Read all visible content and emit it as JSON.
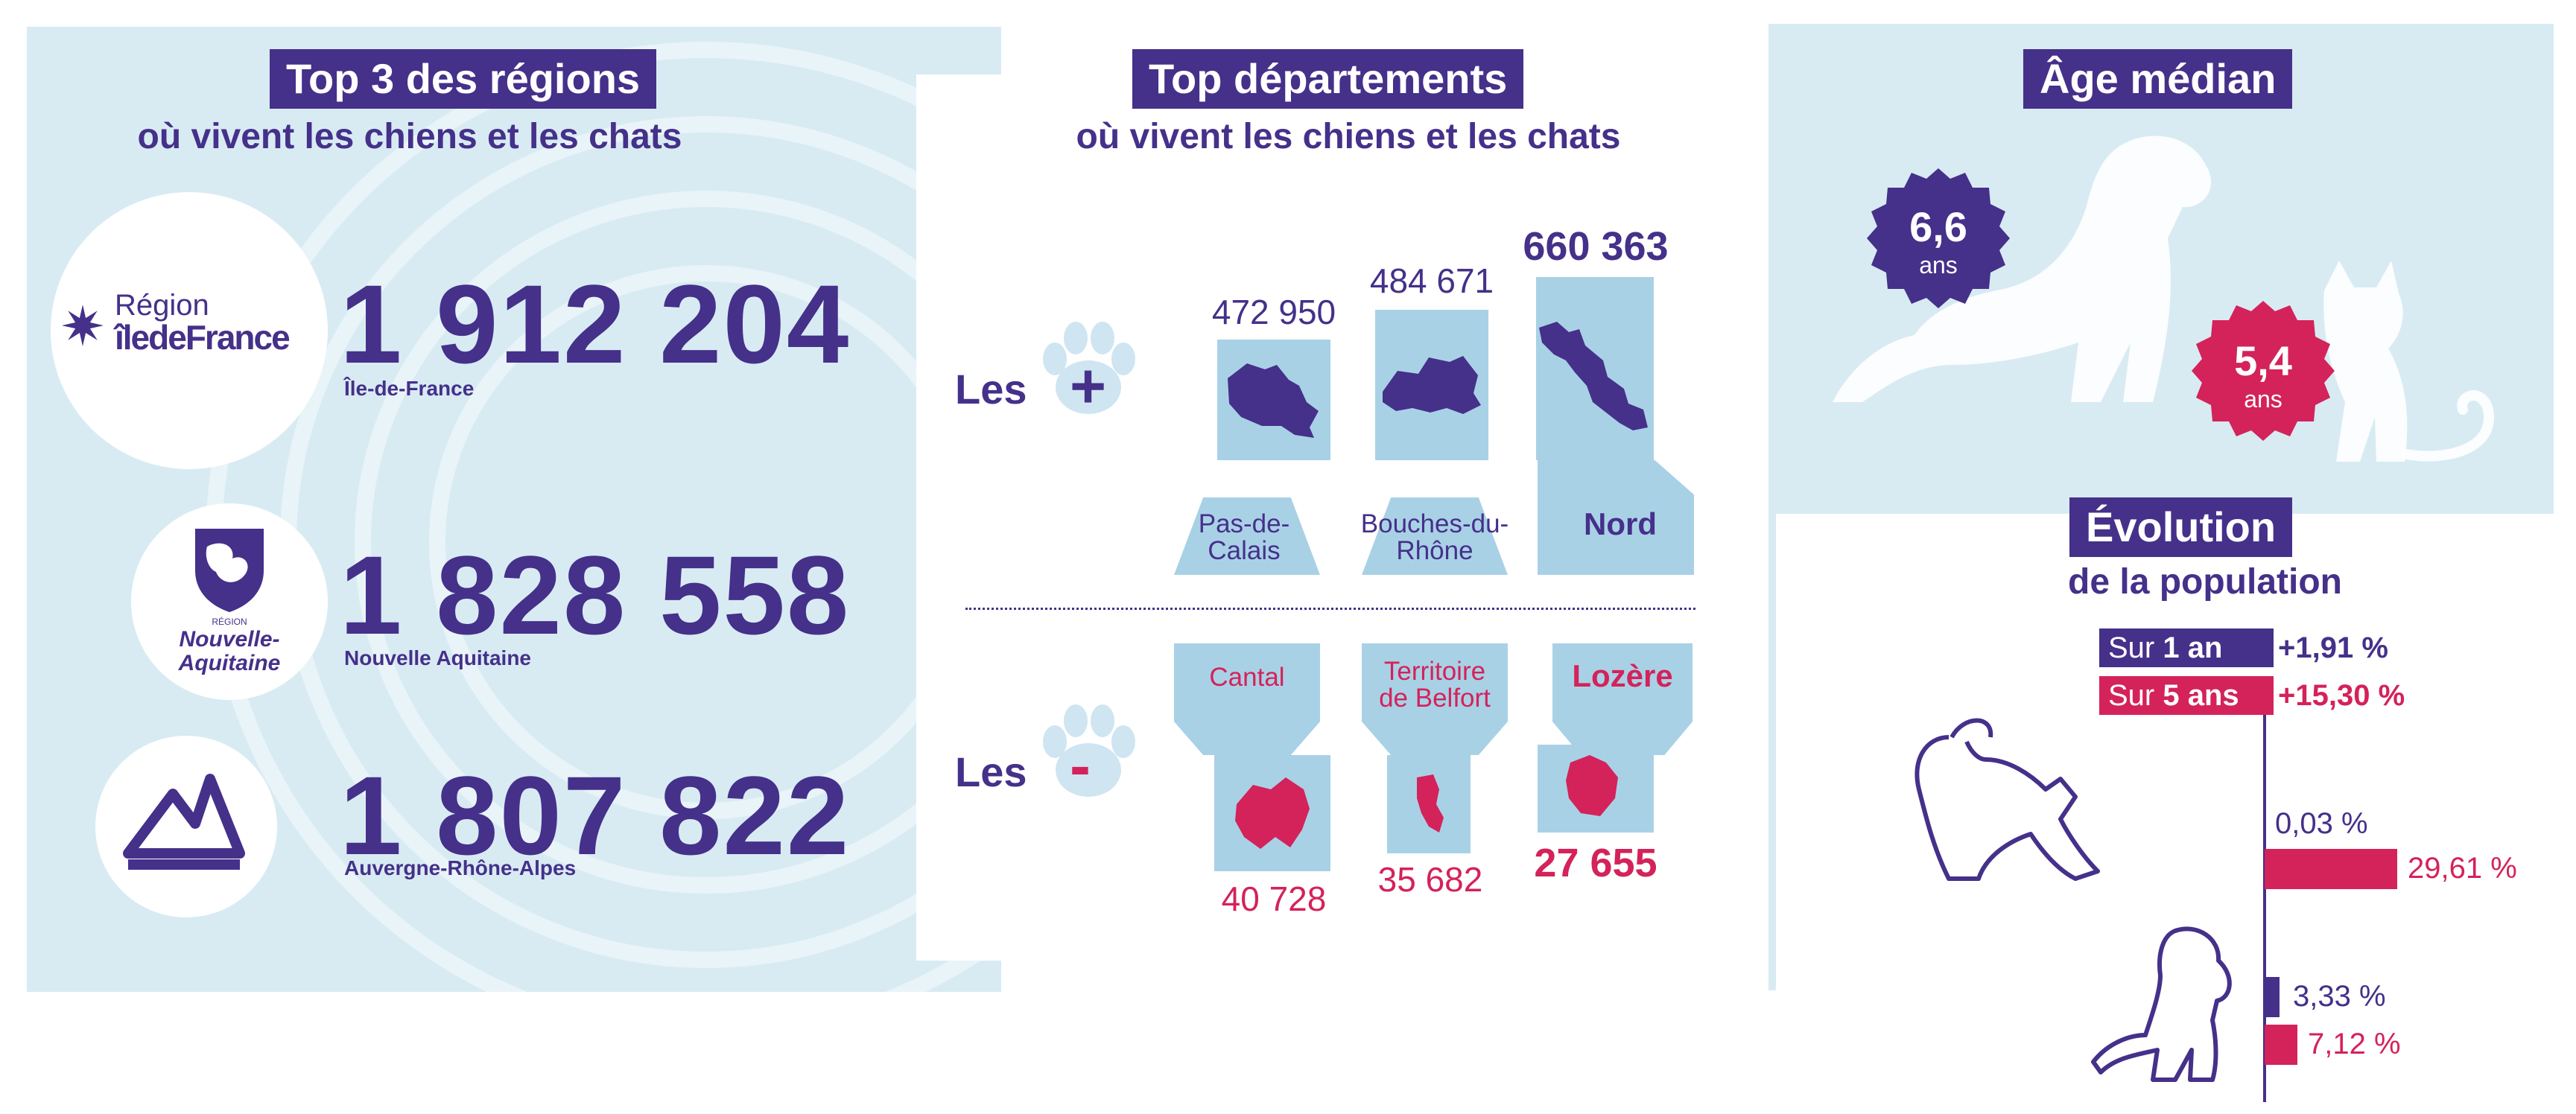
{
  "colors": {
    "purple": "#45308a",
    "pink": "#d4225a",
    "panel": "#d8ebf3",
    "tile": "#a9d1e6"
  },
  "regions": {
    "title": "Top 3 des régions",
    "subtitle": "où vivent les chiens et les chats",
    "items": [
      {
        "value": "1 912 204",
        "name": "Île-de-France",
        "logo_text_1": "Région",
        "logo_text_2": "îledeFrance"
      },
      {
        "value": "1 828 558",
        "name": "Nouvelle Aquitaine",
        "logo_text_1": "RÉGION",
        "logo_text_2": "Nouvelle-",
        "logo_text_3": "Aquitaine"
      },
      {
        "value": "1 807 822",
        "name": "Auvergne-Rhône-Alpes"
      }
    ]
  },
  "departements": {
    "title": "Top départements",
    "subtitle": "où vivent les chiens et les chats",
    "plus_label": "Les",
    "minus_label": "Les",
    "plus_sign": "+",
    "minus_sign": "-",
    "top": [
      {
        "value": "472 950",
        "name": "Pas-de-Calais"
      },
      {
        "value": "484 671",
        "name": "Bouches-du-Rhône"
      },
      {
        "value": "660 363",
        "name": "Nord"
      }
    ],
    "bottom": [
      {
        "value": "40 728",
        "name": "Cantal"
      },
      {
        "value": "35 682",
        "name": "Territoire de Belfort"
      },
      {
        "value": "27 655",
        "name": "Lozère"
      }
    ]
  },
  "age": {
    "title": "Âge médian",
    "dog_value": "6,6",
    "cat_value": "5,4",
    "unit": "ans"
  },
  "evolution": {
    "title": "Évolution",
    "subtitle": "de la population",
    "legend_1an_prefix": "Sur ",
    "legend_1an_bold": "1 an",
    "legend_5ans_prefix": "Sur ",
    "legend_5ans_bold": "5 ans",
    "total_1an": "+1,91 %",
    "total_5ans": "+15,30 %",
    "cat_1an": "0,03 %",
    "cat_5ans": "29,61 %",
    "dog_1an": "3,33 %",
    "dog_5ans": "7,12 %"
  }
}
